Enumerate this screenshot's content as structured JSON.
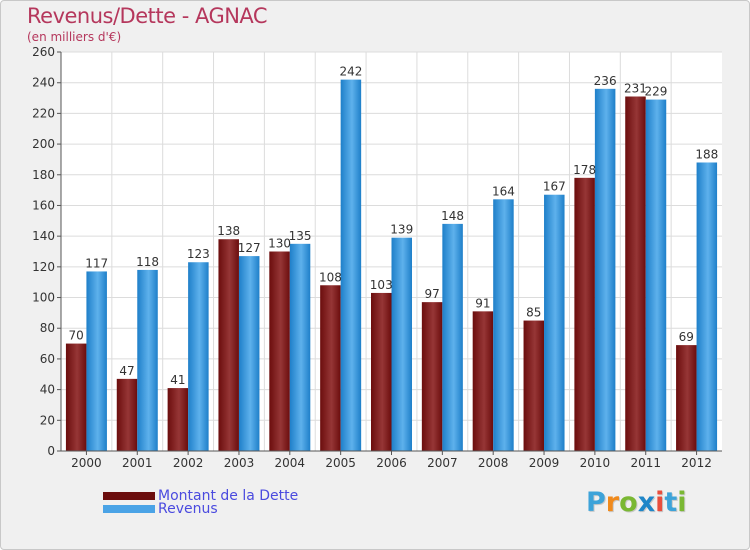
{
  "header": {
    "title": "Revenus/Dette - AGNAC",
    "subtitle": "(en milliers d'€)"
  },
  "colors": {
    "dette": "#6b0d0d",
    "dette_light": "#963636",
    "revenus": "#1e7fc9",
    "revenus_light": "#5eb1ec",
    "title": "#b5375c",
    "legend_text": "#4a4adf"
  },
  "legend": {
    "position": "bottom-left",
    "items": [
      {
        "label": "Montant de la Dette",
        "color": "#6b0d0d"
      },
      {
        "label": "Revenus",
        "color": "#4aa3e6"
      }
    ]
  },
  "logo": {
    "text": "Proxiti",
    "letters": [
      "P",
      "r",
      "o",
      "x",
      "i",
      "t",
      "i"
    ],
    "letter_colors": [
      "#3da3d9",
      "#f08a1c",
      "#7ab833",
      "#1f86c8",
      "#e94e3d",
      "#3da3d9",
      "#7ab833"
    ]
  },
  "chart_data": {
    "type": "bar",
    "categories": [
      "2000",
      "2001",
      "2002",
      "2003",
      "2004",
      "2005",
      "2006",
      "2007",
      "2008",
      "2009",
      "2010",
      "2011",
      "2012"
    ],
    "series": [
      {
        "name": "Montant de la Dette",
        "values": [
          70,
          47,
          41,
          138,
          130,
          108,
          103,
          97,
          91,
          85,
          178,
          231,
          69
        ]
      },
      {
        "name": "Revenus",
        "values": [
          117,
          118,
          123,
          127,
          135,
          242,
          139,
          148,
          164,
          167,
          236,
          229,
          188
        ]
      }
    ],
    "data_labels": [
      [
        "70",
        "47",
        "41",
        "138",
        "130",
        "108",
        "103",
        "97",
        "91",
        "85",
        "178",
        "231",
        "69"
      ],
      [
        "117",
        "118",
        "123",
        "127",
        "135",
        "242",
        "139",
        "148",
        "164",
        "167",
        "236",
        "229",
        "188"
      ]
    ],
    "ylim": [
      0,
      260
    ],
    "yticks": [
      0,
      20,
      40,
      60,
      80,
      100,
      120,
      140,
      160,
      180,
      200,
      220,
      240,
      260
    ],
    "ytick_labels": [
      "0",
      "20",
      "40",
      "60",
      "80",
      "100",
      "120",
      "140",
      "160",
      "180",
      "200",
      "220",
      "240",
      "260"
    ],
    "grid": true,
    "xlabel": "",
    "ylabel": ""
  }
}
